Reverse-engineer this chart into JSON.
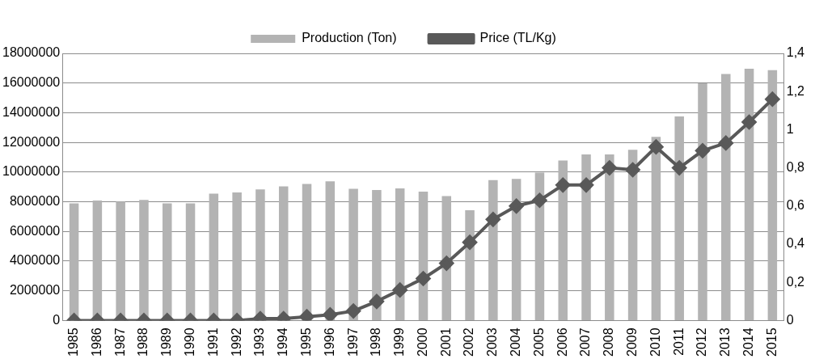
{
  "chart_data": {
    "type": "bar",
    "categories": [
      "1985",
      "1986",
      "1987",
      "1988",
      "1989",
      "1990",
      "1991",
      "1992",
      "1993",
      "1994",
      "1995",
      "1996",
      "1997",
      "1998",
      "1999",
      "2000",
      "2001",
      "2002",
      "2003",
      "2004",
      "2005",
      "2006",
      "2007",
      "2008",
      "2009",
      "2010",
      "2011",
      "2012",
      "2013",
      "2014",
      "2015"
    ],
    "series": [
      {
        "name": "Production (Ton)",
        "color": "#b3b3b3",
        "values": [
          7900000,
          8080000,
          8020000,
          8120000,
          7900000,
          7900000,
          8550000,
          8630000,
          8830000,
          9040000,
          9200000,
          9380000,
          8870000,
          8790000,
          8900000,
          8690000,
          8390000,
          7430000,
          9460000,
          9540000,
          9970000,
          10780000,
          11190000,
          11190000,
          11500000,
          12370000,
          13750000,
          15980000,
          16610000,
          16970000,
          16870000
        ]
      },
      {
        "name": "Price (TL/Kg)",
        "type": "line",
        "axis": "y2",
        "color": "#595959",
        "marker": "diamond",
        "values": [
          0,
          0,
          0,
          0,
          0,
          0,
          0,
          0,
          0.01,
          0.01,
          0.02,
          0.03,
          0.05,
          0.1,
          0.16,
          0.22,
          0.3,
          0.41,
          0.53,
          0.6,
          0.63,
          0.71,
          0.71,
          0.8,
          0.79,
          0.91,
          0.8,
          0.89,
          0.93,
          1.04,
          1.16
        ]
      }
    ],
    "ylim": [
      0,
      18000000
    ],
    "yticks": [
      0,
      2000000,
      4000000,
      6000000,
      8000000,
      10000000,
      12000000,
      14000000,
      16000000,
      18000000
    ],
    "y2lim": [
      0,
      1.4
    ],
    "y2ticks": [
      0,
      {
        "value": 0.2,
        "label": "0,2"
      },
      {
        "value": 0.4,
        "label": "0,4"
      },
      {
        "value": 0.6,
        "label": "0,6"
      },
      {
        "value": 0.8,
        "label": "0,8"
      },
      1,
      {
        "value": 1.2,
        "label": "1,2"
      },
      {
        "value": 1.4,
        "label": "1,4"
      }
    ],
    "grid": "y",
    "legend": "top"
  }
}
